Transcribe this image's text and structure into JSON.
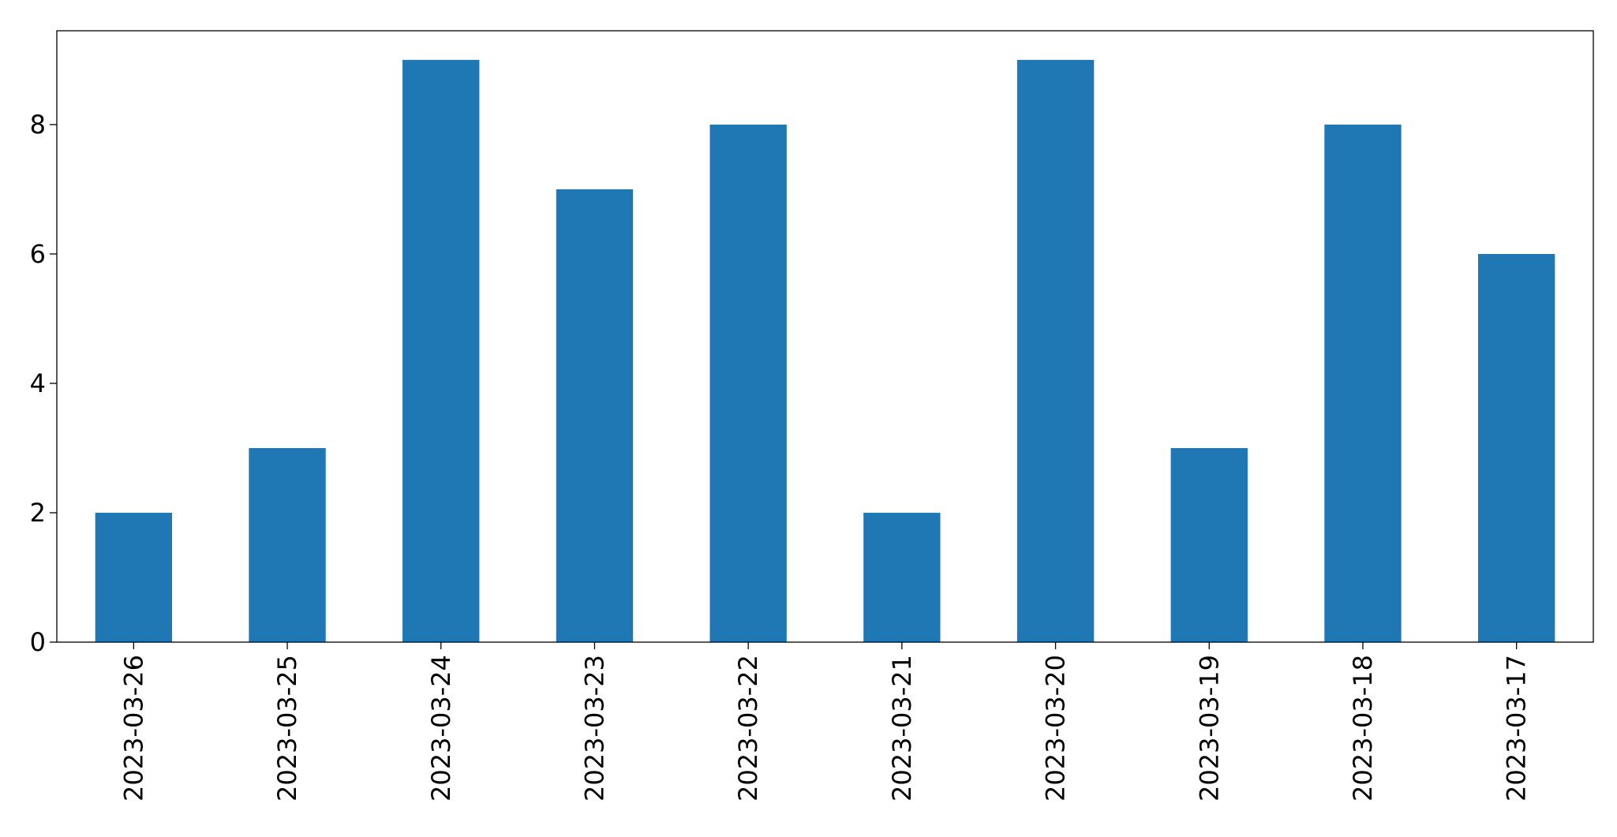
{
  "chart_data": {
    "type": "bar",
    "categories": [
      "2023-03-26",
      "2023-03-25",
      "2023-03-24",
      "2023-03-23",
      "2023-03-22",
      "2023-03-21",
      "2023-03-20",
      "2023-03-19",
      "2023-03-18",
      "2023-03-17"
    ],
    "values": [
      2,
      3,
      9,
      7,
      8,
      2,
      9,
      3,
      8,
      6
    ],
    "color": "#1f77b4",
    "ylim": [
      0,
      9.45
    ],
    "yticks": [
      0,
      2,
      4,
      6,
      8
    ],
    "grid": false
  }
}
